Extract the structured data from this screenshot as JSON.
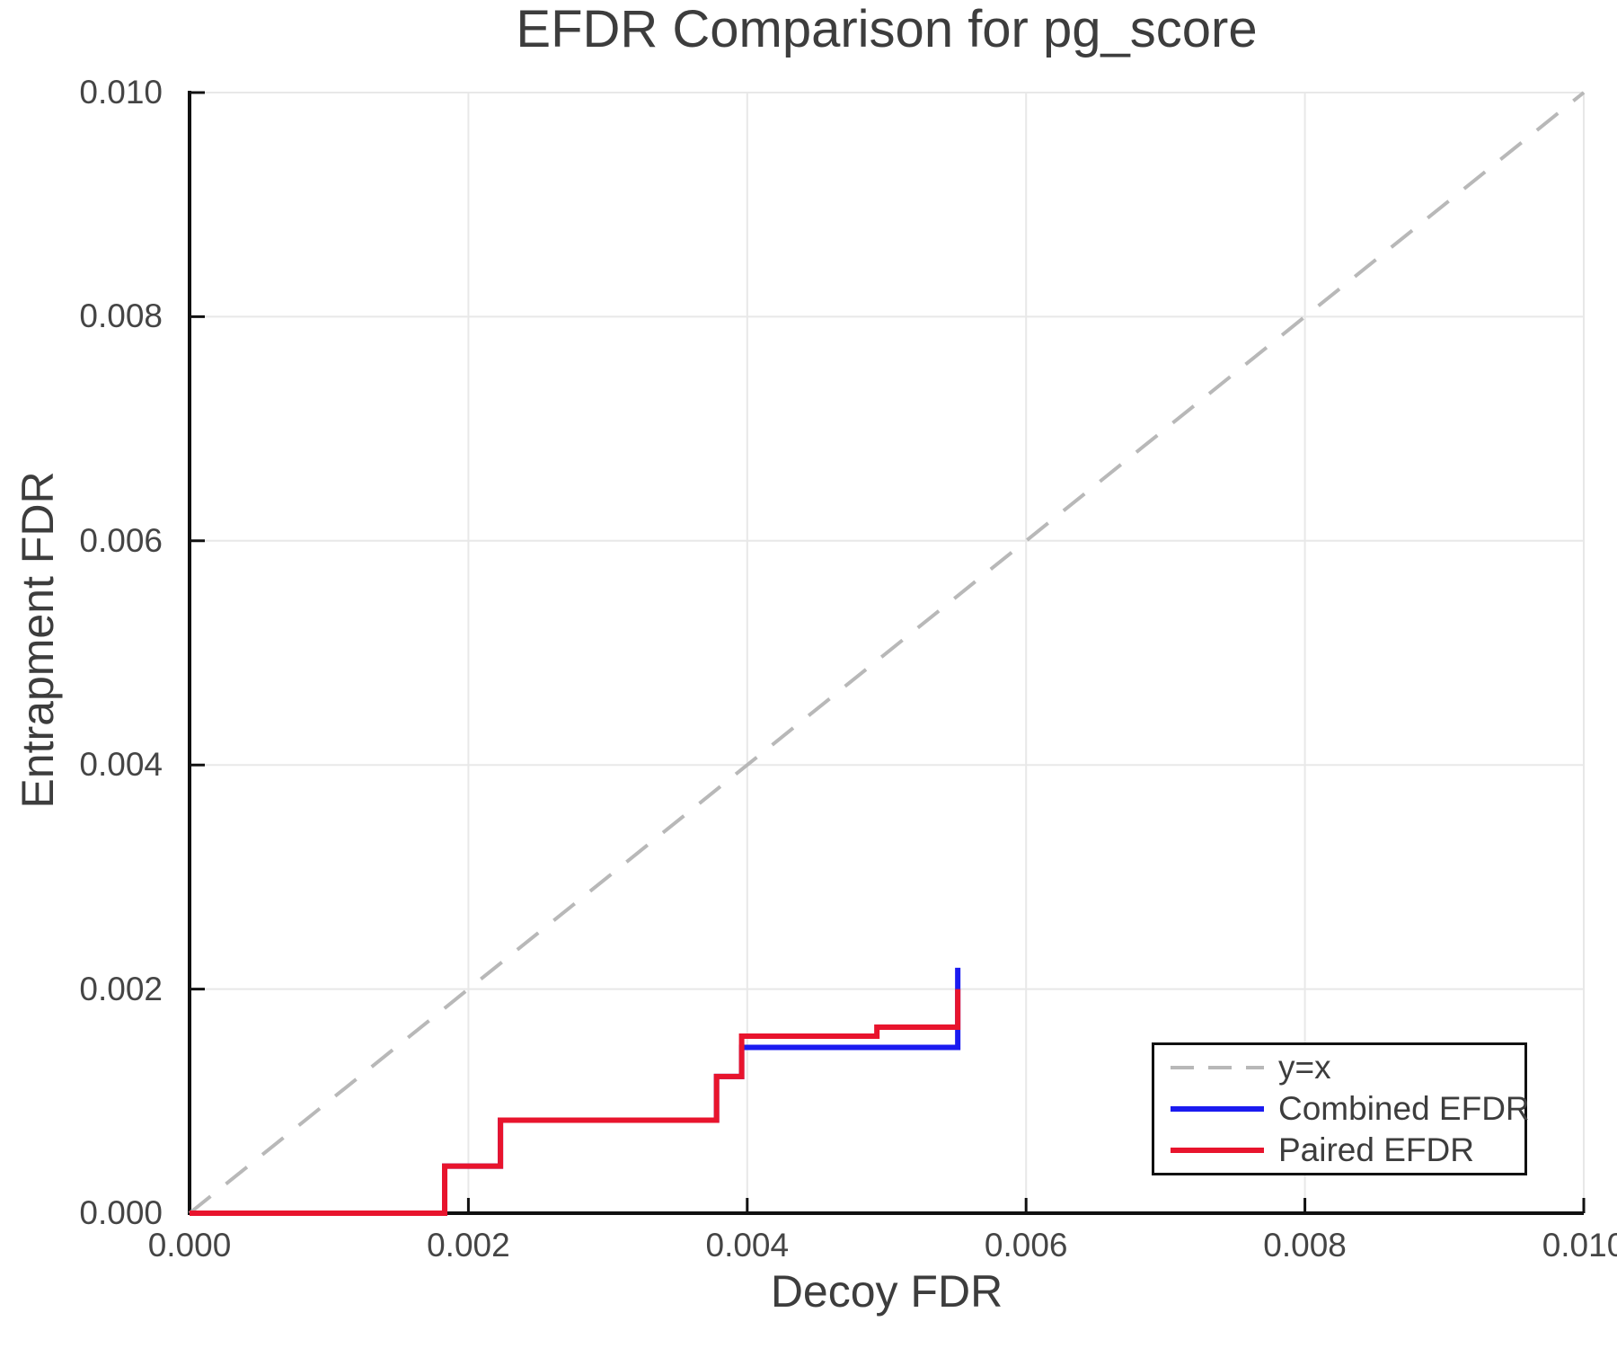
{
  "chart_data": {
    "type": "line",
    "title": "EFDR Comparison for pg_score",
    "xlabel": "Decoy FDR",
    "ylabel": "Entrapment FDR",
    "xlim": [
      0.0,
      0.01
    ],
    "ylim": [
      0.0,
      0.01
    ],
    "grid": true,
    "legend_position": "lower right",
    "x_ticks": [
      "0.000",
      "0.002",
      "0.004",
      "0.006",
      "0.008",
      "0.010"
    ],
    "y_ticks": [
      "0.000",
      "0.002",
      "0.004",
      "0.006",
      "0.008",
      "0.010"
    ],
    "x_tick_values": [
      0.0,
      0.002,
      0.004,
      0.006,
      0.008,
      0.01
    ],
    "y_tick_values": [
      0.0,
      0.002,
      0.004,
      0.006,
      0.008,
      0.01
    ],
    "colors": {
      "grid": "#e8e8e8",
      "axis": "#111111",
      "text": "#3d3d3d"
    },
    "series": [
      {
        "name": "y=x",
        "style": "dashed",
        "color": "#b8b8b8",
        "width": 4,
        "x": [
          0.0,
          0.01
        ],
        "y": [
          0.0,
          0.01
        ]
      },
      {
        "name": "Combined EFDR",
        "style": "solid",
        "color": "#1b1bf0",
        "width": 6,
        "x": [
          0.0,
          0.00183,
          0.00183,
          0.00223,
          0.00223,
          0.00378,
          0.00378,
          0.00396,
          0.00396,
          0.00551,
          0.00551
        ],
        "y": [
          0.0,
          0.0,
          0.00042,
          0.00042,
          0.00083,
          0.00083,
          0.00122,
          0.00122,
          0.00148,
          0.00148,
          0.00219
        ]
      },
      {
        "name": "Paired EFDR",
        "style": "solid",
        "color": "#e8142d",
        "width": 6,
        "x": [
          0.0,
          0.00183,
          0.00183,
          0.00223,
          0.00223,
          0.00378,
          0.00378,
          0.00396,
          0.00396,
          0.00493,
          0.00493,
          0.00551,
          0.00551
        ],
        "y": [
          0.0,
          0.0,
          0.00042,
          0.00042,
          0.00083,
          0.00083,
          0.00122,
          0.00122,
          0.00158,
          0.00158,
          0.00166,
          0.00166,
          0.002
        ]
      }
    ]
  }
}
